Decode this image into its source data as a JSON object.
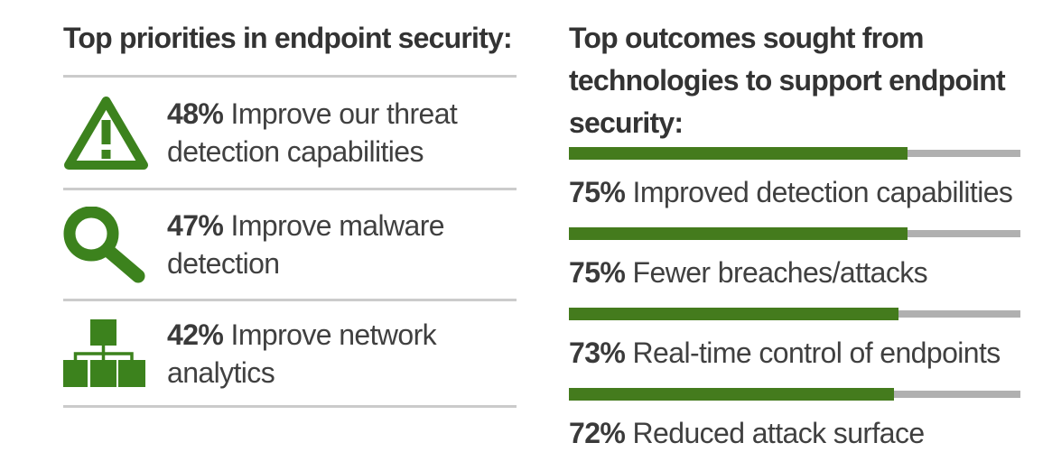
{
  "colors": {
    "green_bar": "#447B1D",
    "green_icon": "#3C821D",
    "track_gray": "#B0B0B0",
    "divider": "#CBCBCB",
    "text": "#404040",
    "title": "#333333"
  },
  "left_panel": {
    "title": "Top priorities in endpoint security:",
    "items": [
      {
        "icon": "warning-triangle-icon",
        "percent": "48%",
        "label": "Improve our threat detection capabilities",
        "label_lines": [
          "Improve our threat",
          "detection capabilities"
        ]
      },
      {
        "icon": "magnifier-icon",
        "percent": "47%",
        "label": "Improve malware detection",
        "label_lines": [
          "Improve malware",
          "detection"
        ]
      },
      {
        "icon": "org-chart-icon",
        "percent": "42%",
        "label": "Improve network analytics",
        "label_lines": [
          "Improve network",
          "analytics"
        ]
      }
    ]
  },
  "right_panel": {
    "title": "Top outcomes sought from technologies to support endpoint security:",
    "title_lines": [
      "Top outcomes sought from",
      "technologies to support endpoint",
      "security:"
    ],
    "items": [
      {
        "percent": "75%",
        "value": 75,
        "label": "Improved detection capabilities"
      },
      {
        "percent": "75%",
        "value": 75,
        "label": "Fewer breaches/attacks"
      },
      {
        "percent": "73%",
        "value": 73,
        "label": "Real-time control of endpoints"
      },
      {
        "percent": "72%",
        "value": 72,
        "label": "Reduced attack surface"
      }
    ]
  },
  "chart_data": [
    {
      "type": "bar",
      "title": "Top priorities in endpoint security:",
      "categories": [
        "Improve our threat detection capabilities",
        "Improve malware detection",
        "Improve network analytics"
      ],
      "values": [
        48,
        47,
        42
      ],
      "unit": "%",
      "xlabel": "",
      "ylabel": "",
      "legend": "none",
      "grid": false
    },
    {
      "type": "bar",
      "title": "Top outcomes sought from technologies to support endpoint security:",
      "categories": [
        "Improved detection capabilities",
        "Fewer breaches/attacks",
        "Real-time control of endpoints",
        "Reduced attack surface"
      ],
      "values": [
        75,
        75,
        73,
        72
      ],
      "unit": "%",
      "xlim": [
        0,
        100
      ],
      "orientation": "horizontal",
      "bar_color": "#447B1D",
      "track_color": "#B0B0B0",
      "grid": false,
      "legend": "none"
    }
  ]
}
